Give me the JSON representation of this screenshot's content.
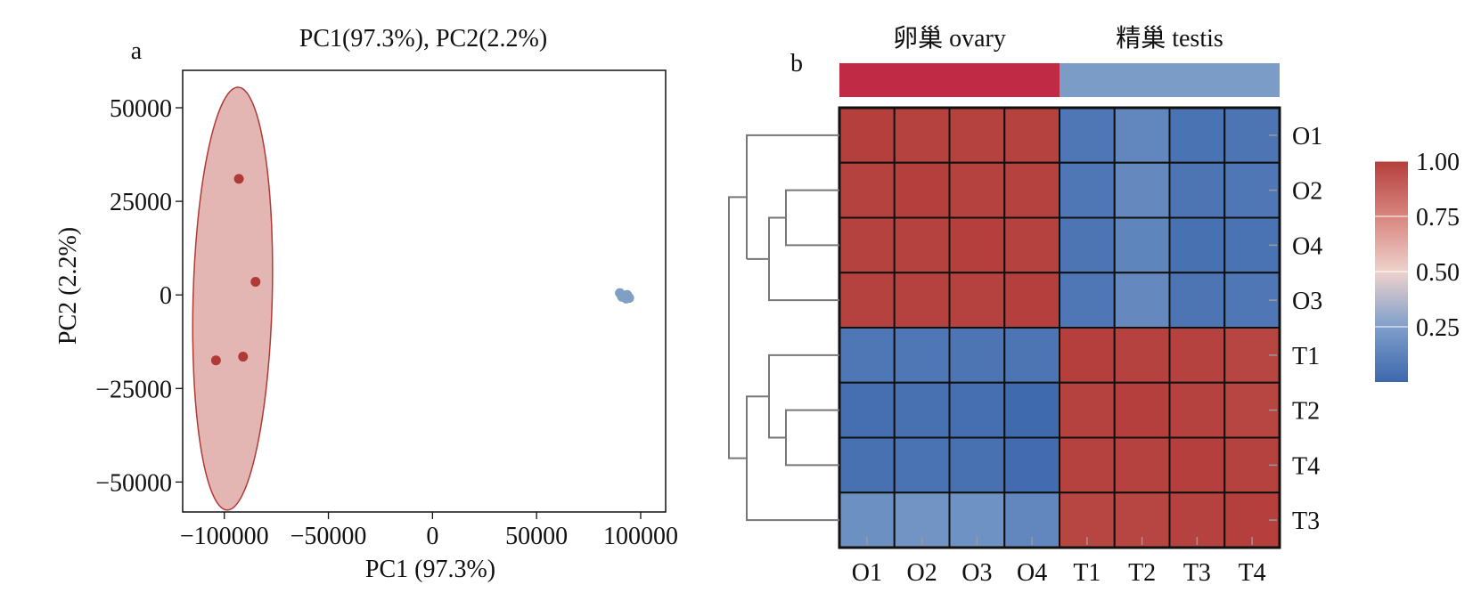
{
  "panels": {
    "a": "a",
    "b": "b"
  },
  "chart_data": [
    {
      "type": "scatter",
      "title": "PC1(97.3%), PC2(2.2%)",
      "xlabel": "PC1 (97.3%)",
      "ylabel": "PC2 (2.2%)",
      "xlim": [
        -120000,
        112000
      ],
      "ylim": [
        -58000,
        60000
      ],
      "xticks": [
        -100000,
        -50000,
        0,
        50000,
        100000
      ],
      "xtick_labels": [
        "−100000",
        "−50000",
        "0",
        "50000",
        "100000"
      ],
      "yticks": [
        -50000,
        -25000,
        0,
        25000,
        50000
      ],
      "ytick_labels": [
        "−50000",
        "−25000",
        "0",
        "25000",
        "50000"
      ],
      "grid": false,
      "series": [
        {
          "color": "#b03a36",
          "points": [
            {
              "x": -93000,
              "y": 31000
            },
            {
              "x": -85000,
              "y": 3500
            },
            {
              "x": -104000,
              "y": -17500
            },
            {
              "x": -91000,
              "y": -16500
            }
          ],
          "ellipse": {
            "cx": -96000,
            "cy": -1000,
            "rx": 19000,
            "ry": 56500,
            "fill": "#e4b6b3",
            "stroke": "#b03a36"
          }
        },
        {
          "color": "#7f9fc4",
          "points": [
            {
              "x": 90000,
              "y": 500
            },
            {
              "x": 92000,
              "y": -200
            },
            {
              "x": 93500,
              "y": 0
            },
            {
              "x": 94500,
              "y": -800
            },
            {
              "x": 91000,
              "y": -500
            },
            {
              "x": 93000,
              "y": -1000
            }
          ]
        }
      ]
    },
    {
      "type": "heatmap",
      "columns": [
        "O1",
        "O2",
        "O3",
        "O4",
        "T1",
        "T2",
        "T3",
        "T4"
      ],
      "rows": [
        "O1",
        "O2",
        "O4",
        "O3",
        "T1",
        "T2",
        "T4",
        "T3"
      ],
      "groups": [
        {
          "label": "卵巢 ovary",
          "span": 4,
          "color": "#c02a45"
        },
        {
          "label": "精巢 testis",
          "span": 4,
          "color": "#7a9cc6"
        }
      ],
      "values": [
        [
          1.0,
          0.99,
          0.99,
          0.99,
          0.07,
          0.14,
          0.05,
          0.06
        ],
        [
          0.99,
          1.0,
          0.99,
          0.99,
          0.07,
          0.15,
          0.06,
          0.07
        ],
        [
          0.99,
          0.99,
          1.0,
          0.99,
          0.06,
          0.13,
          0.04,
          0.05
        ],
        [
          0.99,
          0.99,
          0.99,
          1.0,
          0.07,
          0.15,
          0.06,
          0.07
        ],
        [
          0.07,
          0.07,
          0.06,
          0.06,
          1.0,
          0.99,
          0.99,
          0.98
        ],
        [
          0.03,
          0.04,
          0.03,
          0.01,
          0.99,
          1.0,
          0.99,
          0.98
        ],
        [
          0.04,
          0.05,
          0.04,
          0.02,
          0.99,
          0.99,
          1.0,
          0.99
        ],
        [
          0.18,
          0.2,
          0.19,
          0.14,
          0.98,
          0.98,
          0.99,
          1.0
        ]
      ],
      "colorbar": {
        "min": 0.0,
        "max": 1.0,
        "ticks": [
          1.0,
          0.75,
          0.5,
          0.25
        ],
        "tick_labels": [
          "1.00",
          "0.75",
          "0.50",
          "0.25"
        ],
        "colors": [
          "#3d68ad",
          "#7f9fcb",
          "#eed2cc",
          "#d9857f",
          "#b43f3c"
        ]
      },
      "dendrogram": "left"
    }
  ]
}
